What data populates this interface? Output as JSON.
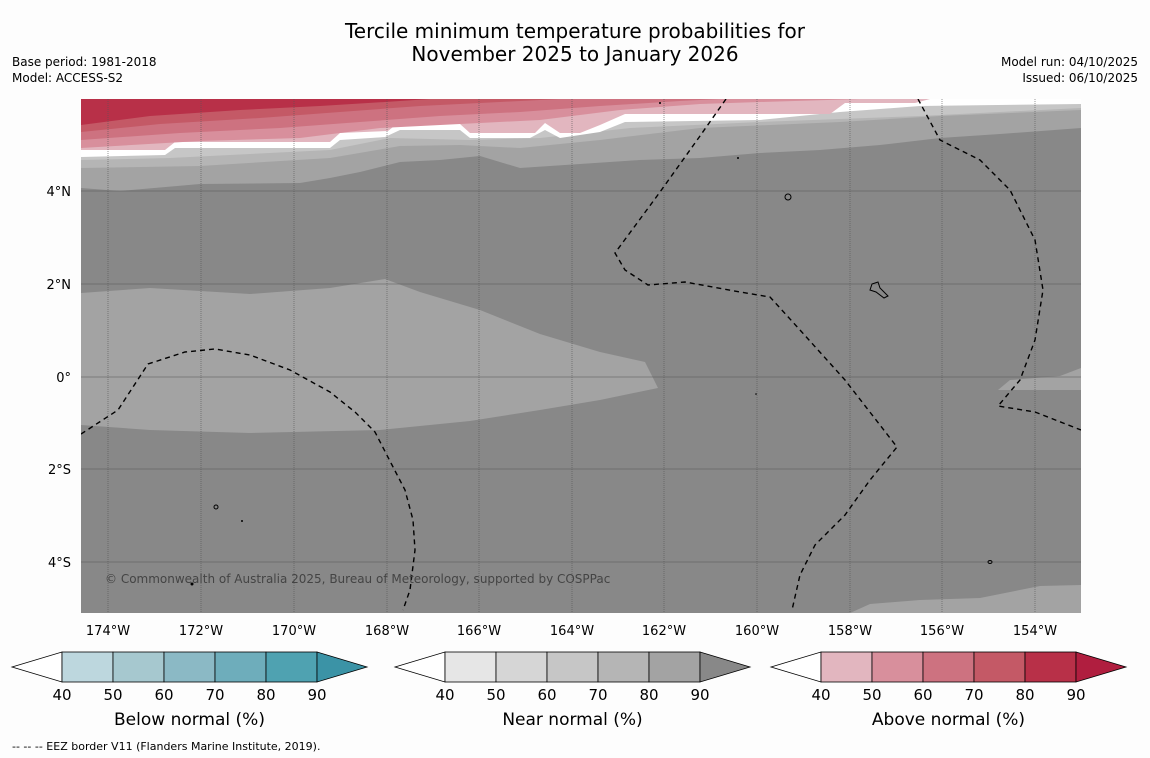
{
  "title_line1": "Tercile minimum temperature probabilities for",
  "title_line2": "November 2025 to January 2026",
  "base_period": "Base period: 1981-2018",
  "model": "Model: ACCESS-S2",
  "model_run": "Model run: 04/10/2025",
  "issued": "Issued: 06/10/2025",
  "copyright": "© Commonwealth of Australia 2025, Bureau of Meteorology, supported by COSPPac",
  "lon_ticks": [
    "174°W",
    "172°W",
    "170°W",
    "168°W",
    "166°W",
    "164°W",
    "162°W",
    "160°W",
    "158°W",
    "156°W",
    "154°W"
  ],
  "lat_ticks": [
    "4°N",
    "2°N",
    "0°",
    "2°S",
    "4°S"
  ],
  "colorbars": [
    {
      "label": "Below normal (%)",
      "ticks": [
        "40",
        "50",
        "60",
        "70",
        "80",
        "90"
      ],
      "colors": [
        "#ffffff",
        "#bdd7de",
        "#a6c8cf",
        "#8bb9c5",
        "#6eadbb",
        "#4fa2b1",
        "#3b93a6"
      ]
    },
    {
      "label": "Near normal (%)",
      "ticks": [
        "40",
        "50",
        "60",
        "70",
        "80",
        "90"
      ],
      "colors": [
        "#ffffff",
        "#e6e6e6",
        "#d6d6d6",
        "#c6c6c6",
        "#b5b5b5",
        "#a3a3a3",
        "#888888"
      ]
    },
    {
      "label": "Above normal (%)",
      "ticks": [
        "40",
        "50",
        "60",
        "70",
        "80",
        "90"
      ],
      "colors": [
        "#ffffff",
        "#e2b6bf",
        "#d88f9c",
        "#cd7280",
        "#c45966",
        "#b83048",
        "#b01e3f"
      ]
    }
  ],
  "legend_footnote": "--  --  -- EEZ border V11 (Flanders Marine Institute, 2019).",
  "colors": {
    "near90": "#888888",
    "near80": "#a3a3a3",
    "near70": "#b5b5b5",
    "near60": "#c6c6c6",
    "above60": "#cd7280",
    "above70": "#c45966",
    "above80": "#b83048"
  }
}
